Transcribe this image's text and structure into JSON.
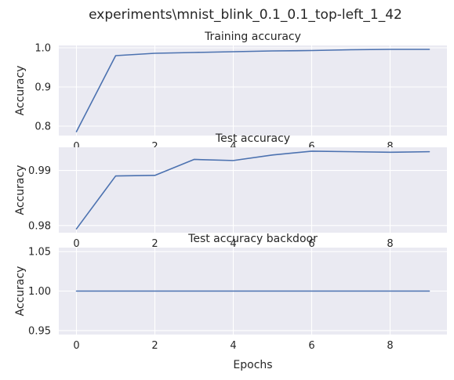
{
  "figure_title": "experiments\\mnist_blink_0.1_0.1_top-left_1_42",
  "chart_data": [
    {
      "type": "line",
      "title": "Training accuracy",
      "xlabel": "",
      "ylabel": "Accuracy",
      "x": [
        0,
        1,
        2,
        3,
        4,
        5,
        6,
        7,
        8,
        9
      ],
      "series": [
        {
          "values": [
            0.786,
            0.98,
            0.986,
            0.988,
            0.99,
            0.992,
            0.993,
            0.995,
            0.996,
            0.996
          ]
        }
      ],
      "xlim": [
        -0.45,
        9.45
      ],
      "ylim": [
        0.776,
        1.006
      ],
      "xticks": [
        0,
        2,
        4,
        6,
        8
      ],
      "yticks": [
        0.8,
        0.9,
        1.0
      ],
      "ytick_labels": [
        "0.8",
        "0.9",
        "1.0"
      ],
      "grid": true
    },
    {
      "type": "line",
      "title": "Test accuracy",
      "xlabel": "",
      "ylabel": "Accuracy",
      "x": [
        0,
        1,
        2,
        3,
        4,
        5,
        6,
        7,
        8,
        9
      ],
      "series": [
        {
          "values": [
            0.9794,
            0.989,
            0.9891,
            0.992,
            0.9918,
            0.9928,
            0.9935,
            0.9934,
            0.9933,
            0.9934
          ]
        }
      ],
      "xlim": [
        -0.45,
        9.45
      ],
      "ylim": [
        0.9787,
        0.9942
      ],
      "xticks": [
        0,
        2,
        4,
        6,
        8
      ],
      "yticks": [
        0.98,
        0.99
      ],
      "ytick_labels": [
        "0.98",
        "0.99"
      ],
      "grid": true
    },
    {
      "type": "line",
      "title": "Test accuracy backdoor",
      "xlabel": "Epochs",
      "ylabel": "Accuracy",
      "x": [
        0,
        1,
        2,
        3,
        4,
        5,
        6,
        7,
        8,
        9
      ],
      "series": [
        {
          "values": [
            1.0,
            1.0,
            1.0,
            1.0,
            1.0,
            1.0,
            1.0,
            1.0,
            1.0,
            1.0
          ]
        }
      ],
      "xlim": [
        -0.45,
        9.45
      ],
      "ylim": [
        0.945,
        1.055
      ],
      "xticks": [
        0,
        2,
        4,
        6,
        8
      ],
      "yticks": [
        0.95,
        1.0,
        1.05
      ],
      "ytick_labels": [
        "0.95",
        "1.00",
        "1.05"
      ],
      "grid": true
    }
  ]
}
